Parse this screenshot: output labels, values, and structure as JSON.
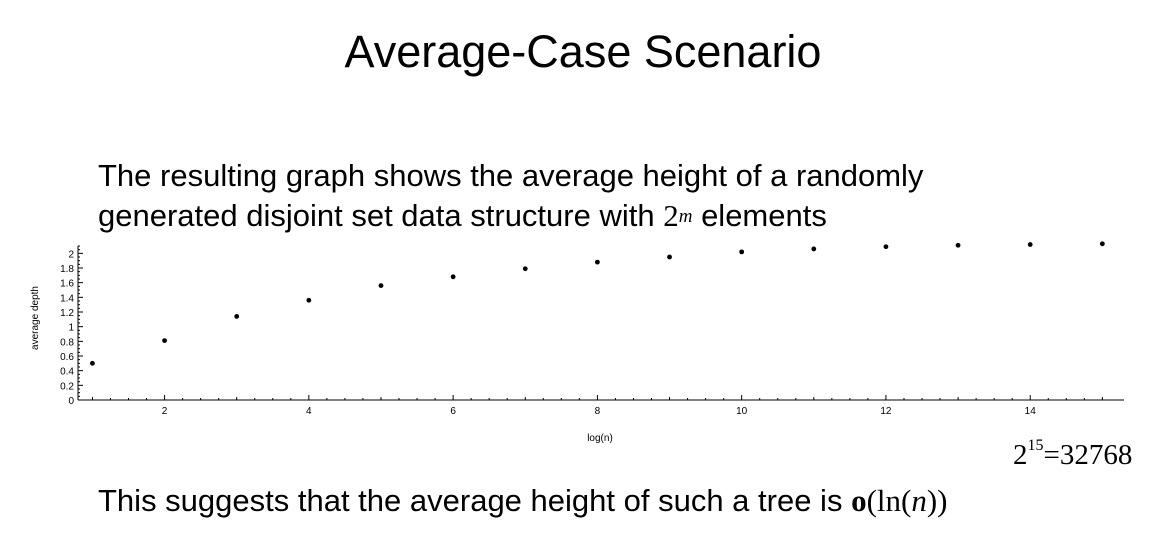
{
  "slide": {
    "title": "Average-Case Scenario",
    "intro_line1": "The resulting graph shows the average height of a randomly",
    "intro_line2_before": "generated disjoint set data structure with ",
    "intro_base": "2",
    "intro_exp": "m",
    "intro_line2_after": " elements",
    "power_base": "2",
    "power_exp": "15",
    "power_rest": "=32768",
    "conclusion_before": "This suggests that the average height of such a tree is ",
    "conclusion_o": "o",
    "conclusion_open": "(ln(",
    "conclusion_n": "n",
    "conclusion_close": "))"
  },
  "chart_data": {
    "type": "scatter",
    "xlabel": "log(n)",
    "ylabel": "average depth",
    "xlim": [
      0.8,
      15.3
    ],
    "ylim": [
      0,
      2.1
    ],
    "xticks": [
      2,
      4,
      6,
      8,
      10,
      12,
      14
    ],
    "yticks": [
      0,
      0.2,
      0.4,
      0.6,
      0.8,
      1,
      1.2,
      1.4,
      1.6,
      1.8,
      2
    ],
    "ytick_labels": [
      "0",
      "0.2",
      "0.4",
      "0.6",
      "0.8",
      "1",
      "1.2",
      "1.4",
      "1.6",
      "1.8",
      "2"
    ],
    "grid": false,
    "points": {
      "x": [
        1,
        2,
        3,
        4,
        5,
        6,
        7,
        8,
        9,
        10,
        11,
        12,
        13,
        14,
        15
      ],
      "y": [
        0.5,
        0.81,
        1.14,
        1.36,
        1.56,
        1.68,
        1.79,
        1.88,
        1.95,
        2.02,
        2.06,
        2.09,
        2.11,
        2.12,
        2.13
      ]
    }
  }
}
